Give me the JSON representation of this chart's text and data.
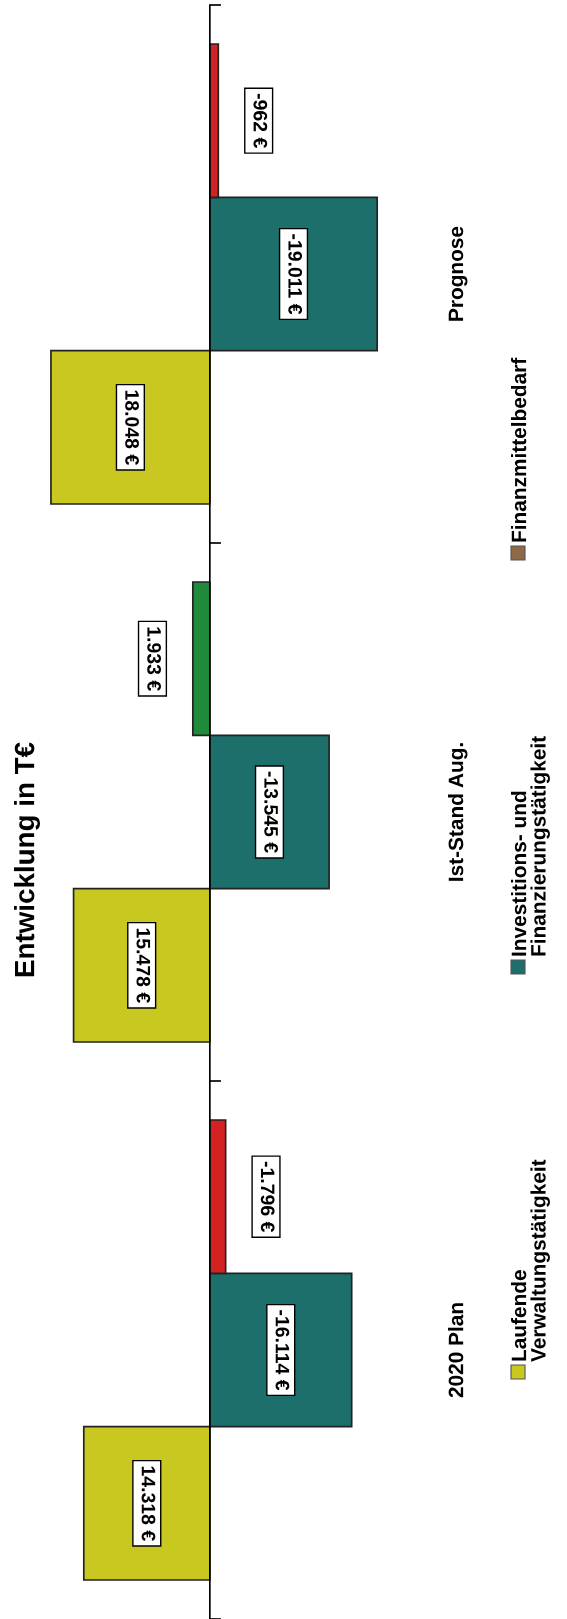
{
  "chart_data": {
    "type": "bar",
    "title": "Entwicklung in T€",
    "orientation": "horizontal",
    "categories": [
      "Prognose",
      "Ist-Stand Aug.",
      "2020 Plan"
    ],
    "series": [
      {
        "name": "Laufende\nVerwaltungstätigkeit",
        "color": "#c9c820",
        "values": [
          18048,
          15478,
          14318
        ],
        "value_labels": [
          "18.048 €",
          "15.478 €",
          "14.318 €"
        ]
      },
      {
        "name": "Investitions- und\nFinanzierungstätigkeit",
        "color": "#1d6f6c",
        "values": [
          -19011,
          -13545,
          -16114
        ],
        "value_labels": [
          "-19.011 €",
          "-13.545 €",
          "-16.114 €"
        ]
      },
      {
        "name": "Finanzmittelbedarf",
        "color": "#8c6a45",
        "colors": [
          "#d42222",
          "#1f8b3a",
          "#d42222"
        ],
        "values": [
          -962,
          1933,
          -1796
        ],
        "value_labels": [
          "-962 €",
          "1.933 €",
          "-1.796 €"
        ]
      }
    ],
    "legend": "bottom",
    "grid": false
  }
}
